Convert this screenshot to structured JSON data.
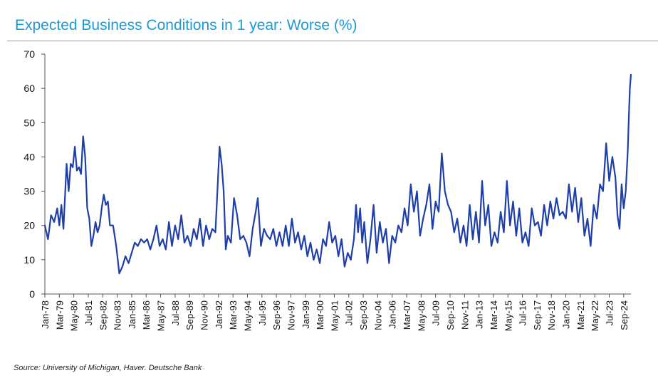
{
  "title": "Expected Business Conditions in 1 year: Worse (%)",
  "source": "Source: University of Michigan, Haver. Deutsche Bank",
  "colors": {
    "title": "#1a9ad6",
    "line": "#1f3fa8",
    "axis": "#555555"
  },
  "chart_data": {
    "type": "line",
    "title": "Expected Business Conditions in 1 year: Worse (%)",
    "xlabel": "",
    "ylabel": "",
    "ylim": [
      0,
      70
    ],
    "yticks": [
      0,
      10,
      20,
      30,
      40,
      50,
      60,
      70
    ],
    "xlim": [
      "1978-01",
      "2025-04"
    ],
    "grid": false,
    "legend": "none",
    "xtick_labels": [
      "Jan-78",
      "Mar-79",
      "May-80",
      "Jul-81",
      "Sep-82",
      "Nov-83",
      "Jan-85",
      "Mar-86",
      "May-87",
      "Jul-88",
      "Sep-89",
      "Nov-90",
      "Jan-92",
      "Mar-93",
      "May-94",
      "Jul-95",
      "Sep-96",
      "Nov-97",
      "Jan-99",
      "Mar-00",
      "May-01",
      "Jul-02",
      "Sep-03",
      "Nov-04",
      "Jan-06",
      "Mar-07",
      "May-08",
      "Jul-09",
      "Sep-10",
      "Nov-11",
      "Jan-13",
      "Mar-14",
      "May-15",
      "Jul-16",
      "Sep-17",
      "Nov-18",
      "Jan-20",
      "Mar-21",
      "May-22",
      "Jul-23",
      "Sep-24"
    ],
    "series": [
      {
        "points": [
          [
            "1978-01",
            20
          ],
          [
            "1978-04",
            16
          ],
          [
            "1978-07",
            23
          ],
          [
            "1978-10",
            21
          ],
          [
            "1979-01",
            25
          ],
          [
            "1979-03",
            20
          ],
          [
            "1979-05",
            26
          ],
          [
            "1979-07",
            19
          ],
          [
            "1979-10",
            38
          ],
          [
            "1979-12",
            30
          ],
          [
            "1980-02",
            38
          ],
          [
            "1980-04",
            37
          ],
          [
            "1980-06",
            43
          ],
          [
            "1980-08",
            36
          ],
          [
            "1980-10",
            37
          ],
          [
            "1980-12",
            35
          ],
          [
            "1981-02",
            46
          ],
          [
            "1981-04",
            40
          ],
          [
            "1981-06",
            25
          ],
          [
            "1981-08",
            22
          ],
          [
            "1981-10",
            14
          ],
          [
            "1981-12",
            17
          ],
          [
            "1982-02",
            21
          ],
          [
            "1982-04",
            18
          ],
          [
            "1982-06",
            20
          ],
          [
            "1982-08",
            25
          ],
          [
            "1982-10",
            29
          ],
          [
            "1982-12",
            26
          ],
          [
            "1983-02",
            27
          ],
          [
            "1983-04",
            20
          ],
          [
            "1983-07",
            20
          ],
          [
            "1983-10",
            14
          ],
          [
            "1984-01",
            6
          ],
          [
            "1984-04",
            8
          ],
          [
            "1984-07",
            11
          ],
          [
            "1984-10",
            9
          ],
          [
            "1985-01",
            12
          ],
          [
            "1985-04",
            15
          ],
          [
            "1985-07",
            14
          ],
          [
            "1985-10",
            16
          ],
          [
            "1986-01",
            15
          ],
          [
            "1986-04",
            16
          ],
          [
            "1986-07",
            13
          ],
          [
            "1986-10",
            16
          ],
          [
            "1987-01",
            20
          ],
          [
            "1987-04",
            14
          ],
          [
            "1987-07",
            16
          ],
          [
            "1987-10",
            13
          ],
          [
            "1988-01",
            21
          ],
          [
            "1988-04",
            14
          ],
          [
            "1988-07",
            20
          ],
          [
            "1988-10",
            16
          ],
          [
            "1989-01",
            23
          ],
          [
            "1989-04",
            15
          ],
          [
            "1989-07",
            17
          ],
          [
            "1989-10",
            14
          ],
          [
            "1990-01",
            19
          ],
          [
            "1990-04",
            16
          ],
          [
            "1990-07",
            22
          ],
          [
            "1990-10",
            14
          ],
          [
            "1991-01",
            20
          ],
          [
            "1991-04",
            16
          ],
          [
            "1991-07",
            19
          ],
          [
            "1991-10",
            18
          ],
          [
            "1992-02",
            43
          ],
          [
            "1992-04",
            38
          ],
          [
            "1992-06",
            30
          ],
          [
            "1992-08",
            13
          ],
          [
            "1992-10",
            17
          ],
          [
            "1993-01",
            15
          ],
          [
            "1993-04",
            28
          ],
          [
            "1993-07",
            23
          ],
          [
            "1993-10",
            16
          ],
          [
            "1994-01",
            17
          ],
          [
            "1994-04",
            15
          ],
          [
            "1994-07",
            11
          ],
          [
            "1994-10",
            19
          ],
          [
            "1995-01",
            24
          ],
          [
            "1995-03",
            28
          ],
          [
            "1995-06",
            14
          ],
          [
            "1995-09",
            19
          ],
          [
            "1995-12",
            17
          ],
          [
            "1996-03",
            16
          ],
          [
            "1996-06",
            19
          ],
          [
            "1996-09",
            14
          ],
          [
            "1996-12",
            18
          ],
          [
            "1997-03",
            14
          ],
          [
            "1997-06",
            20
          ],
          [
            "1997-09",
            14
          ],
          [
            "1997-12",
            22
          ],
          [
            "1998-03",
            15
          ],
          [
            "1998-06",
            18
          ],
          [
            "1998-09",
            13
          ],
          [
            "1998-12",
            17
          ],
          [
            "1999-03",
            11
          ],
          [
            "1999-06",
            15
          ],
          [
            "1999-09",
            10
          ],
          [
            "1999-12",
            13
          ],
          [
            "2000-03",
            9
          ],
          [
            "2000-06",
            16
          ],
          [
            "2000-09",
            14
          ],
          [
            "2000-12",
            21
          ],
          [
            "2001-03",
            15
          ],
          [
            "2001-06",
            17
          ],
          [
            "2001-09",
            11
          ],
          [
            "2001-12",
            16
          ],
          [
            "2002-03",
            8
          ],
          [
            "2002-06",
            12
          ],
          [
            "2002-09",
            10
          ],
          [
            "2002-12",
            16
          ],
          [
            "2003-02",
            26
          ],
          [
            "2003-04",
            18
          ],
          [
            "2003-06",
            25
          ],
          [
            "2003-08",
            15
          ],
          [
            "2003-10",
            21
          ],
          [
            "2004-01",
            9
          ],
          [
            "2004-04",
            16
          ],
          [
            "2004-07",
            26
          ],
          [
            "2004-10",
            12
          ],
          [
            "2005-01",
            21
          ],
          [
            "2005-04",
            15
          ],
          [
            "2005-07",
            19
          ],
          [
            "2005-10",
            9
          ],
          [
            "2006-01",
            17
          ],
          [
            "2006-04",
            15
          ],
          [
            "2006-07",
            20
          ],
          [
            "2006-10",
            18
          ],
          [
            "2007-01",
            25
          ],
          [
            "2007-04",
            20
          ],
          [
            "2007-07",
            32
          ],
          [
            "2007-10",
            24
          ],
          [
            "2008-01",
            30
          ],
          [
            "2008-04",
            17
          ],
          [
            "2008-07",
            22
          ],
          [
            "2008-10",
            26
          ],
          [
            "2009-01",
            32
          ],
          [
            "2009-04",
            19
          ],
          [
            "2009-07",
            27
          ],
          [
            "2009-10",
            24
          ],
          [
            "2010-01",
            41
          ],
          [
            "2010-04",
            30
          ],
          [
            "2010-07",
            26
          ],
          [
            "2010-10",
            24
          ],
          [
            "2011-01",
            18
          ],
          [
            "2011-04",
            22
          ],
          [
            "2011-07",
            15
          ],
          [
            "2011-10",
            20
          ],
          [
            "2012-01",
            14
          ],
          [
            "2012-04",
            26
          ],
          [
            "2012-07",
            16
          ],
          [
            "2012-10",
            24
          ],
          [
            "2013-01",
            15
          ],
          [
            "2013-04",
            33
          ],
          [
            "2013-07",
            20
          ],
          [
            "2013-10",
            26
          ],
          [
            "2014-01",
            14
          ],
          [
            "2014-04",
            18
          ],
          [
            "2014-07",
            15
          ],
          [
            "2014-10",
            24
          ],
          [
            "2015-01",
            18
          ],
          [
            "2015-04",
            33
          ],
          [
            "2015-07",
            20
          ],
          [
            "2015-10",
            27
          ],
          [
            "2016-01",
            17
          ],
          [
            "2016-04",
            25
          ],
          [
            "2016-07",
            15
          ],
          [
            "2016-10",
            18
          ],
          [
            "2017-01",
            14
          ],
          [
            "2017-04",
            25
          ],
          [
            "2017-07",
            20
          ],
          [
            "2017-10",
            21
          ],
          [
            "2018-01",
            17
          ],
          [
            "2018-04",
            26
          ],
          [
            "2018-07",
            20
          ],
          [
            "2018-10",
            27
          ],
          [
            "2019-01",
            22
          ],
          [
            "2019-04",
            28
          ],
          [
            "2019-07",
            23
          ],
          [
            "2019-10",
            24
          ],
          [
            "2020-01",
            22
          ],
          [
            "2020-04",
            32
          ],
          [
            "2020-07",
            24
          ],
          [
            "2020-10",
            31
          ],
          [
            "2021-01",
            21
          ],
          [
            "2021-04",
            28
          ],
          [
            "2021-07",
            17
          ],
          [
            "2021-10",
            22
          ],
          [
            "2022-01",
            14
          ],
          [
            "2022-04",
            26
          ],
          [
            "2022-07",
            22
          ],
          [
            "2022-10",
            32
          ],
          [
            "2023-01",
            30
          ],
          [
            "2023-04",
            44
          ],
          [
            "2023-07",
            33
          ],
          [
            "2023-10",
            40
          ],
          [
            "2024-01",
            34
          ],
          [
            "2024-03",
            23
          ],
          [
            "2024-05",
            19
          ],
          [
            "2024-07",
            32
          ],
          [
            "2024-09",
            25
          ],
          [
            "2024-11",
            30
          ],
          [
            "2025-01",
            42
          ],
          [
            "2025-02",
            52
          ],
          [
            "2025-03",
            60
          ],
          [
            "2025-04",
            64
          ]
        ]
      }
    ]
  }
}
